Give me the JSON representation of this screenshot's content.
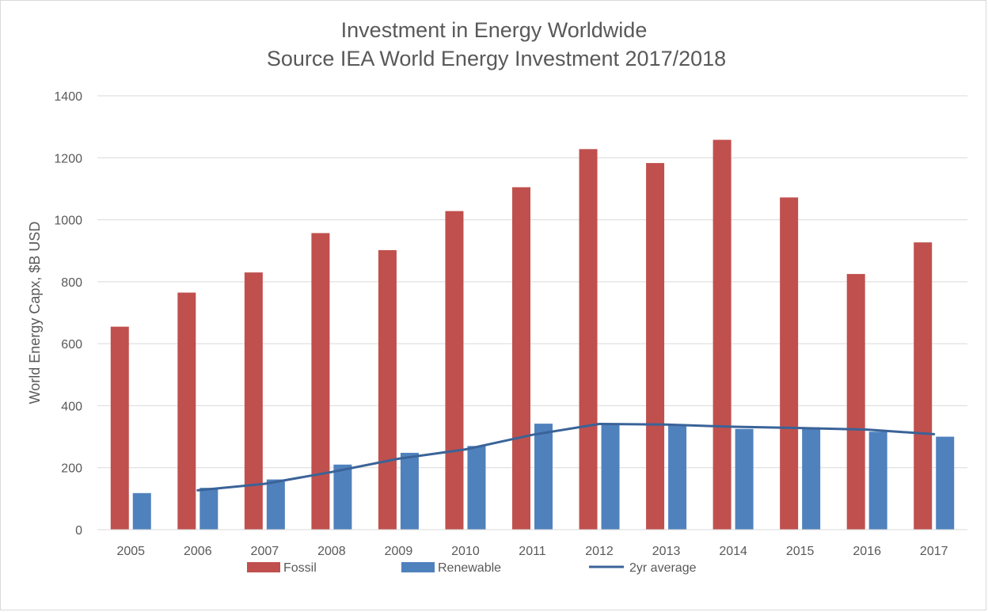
{
  "chart_data": {
    "type": "bar",
    "title": "Investment in Energy Worldwide",
    "subtitle": "Source IEA World Energy Investment 2017/2018",
    "xlabel": "",
    "ylabel": "World Energy Capx, $B USD",
    "ylim": [
      0,
      1400
    ],
    "yticks": [
      0,
      200,
      400,
      600,
      800,
      1000,
      1200,
      1400
    ],
    "grid": true,
    "legend_position": "bottom",
    "categories": [
      "2005",
      "2006",
      "2007",
      "2008",
      "2009",
      "2010",
      "2011",
      "2012",
      "2013",
      "2014",
      "2015",
      "2016",
      "2017"
    ],
    "series": [
      {
        "name": "Fossil",
        "kind": "bar",
        "color": "#c0504d",
        "values": [
          655,
          765,
          830,
          957,
          902,
          1028,
          1105,
          1228,
          1183,
          1258,
          1072,
          825,
          927
        ]
      },
      {
        "name": "Renewable",
        "kind": "bar",
        "color": "#4f81bd",
        "values": [
          118,
          135,
          162,
          210,
          248,
          270,
          342,
          340,
          338,
          325,
          330,
          316,
          300
        ]
      },
      {
        "name": "2yr average",
        "kind": "line",
        "color": "#3a6398",
        "values": [
          null,
          127,
          148,
          186,
          229,
          259,
          306,
          341,
          339,
          332,
          328,
          323,
          308
        ]
      }
    ]
  }
}
